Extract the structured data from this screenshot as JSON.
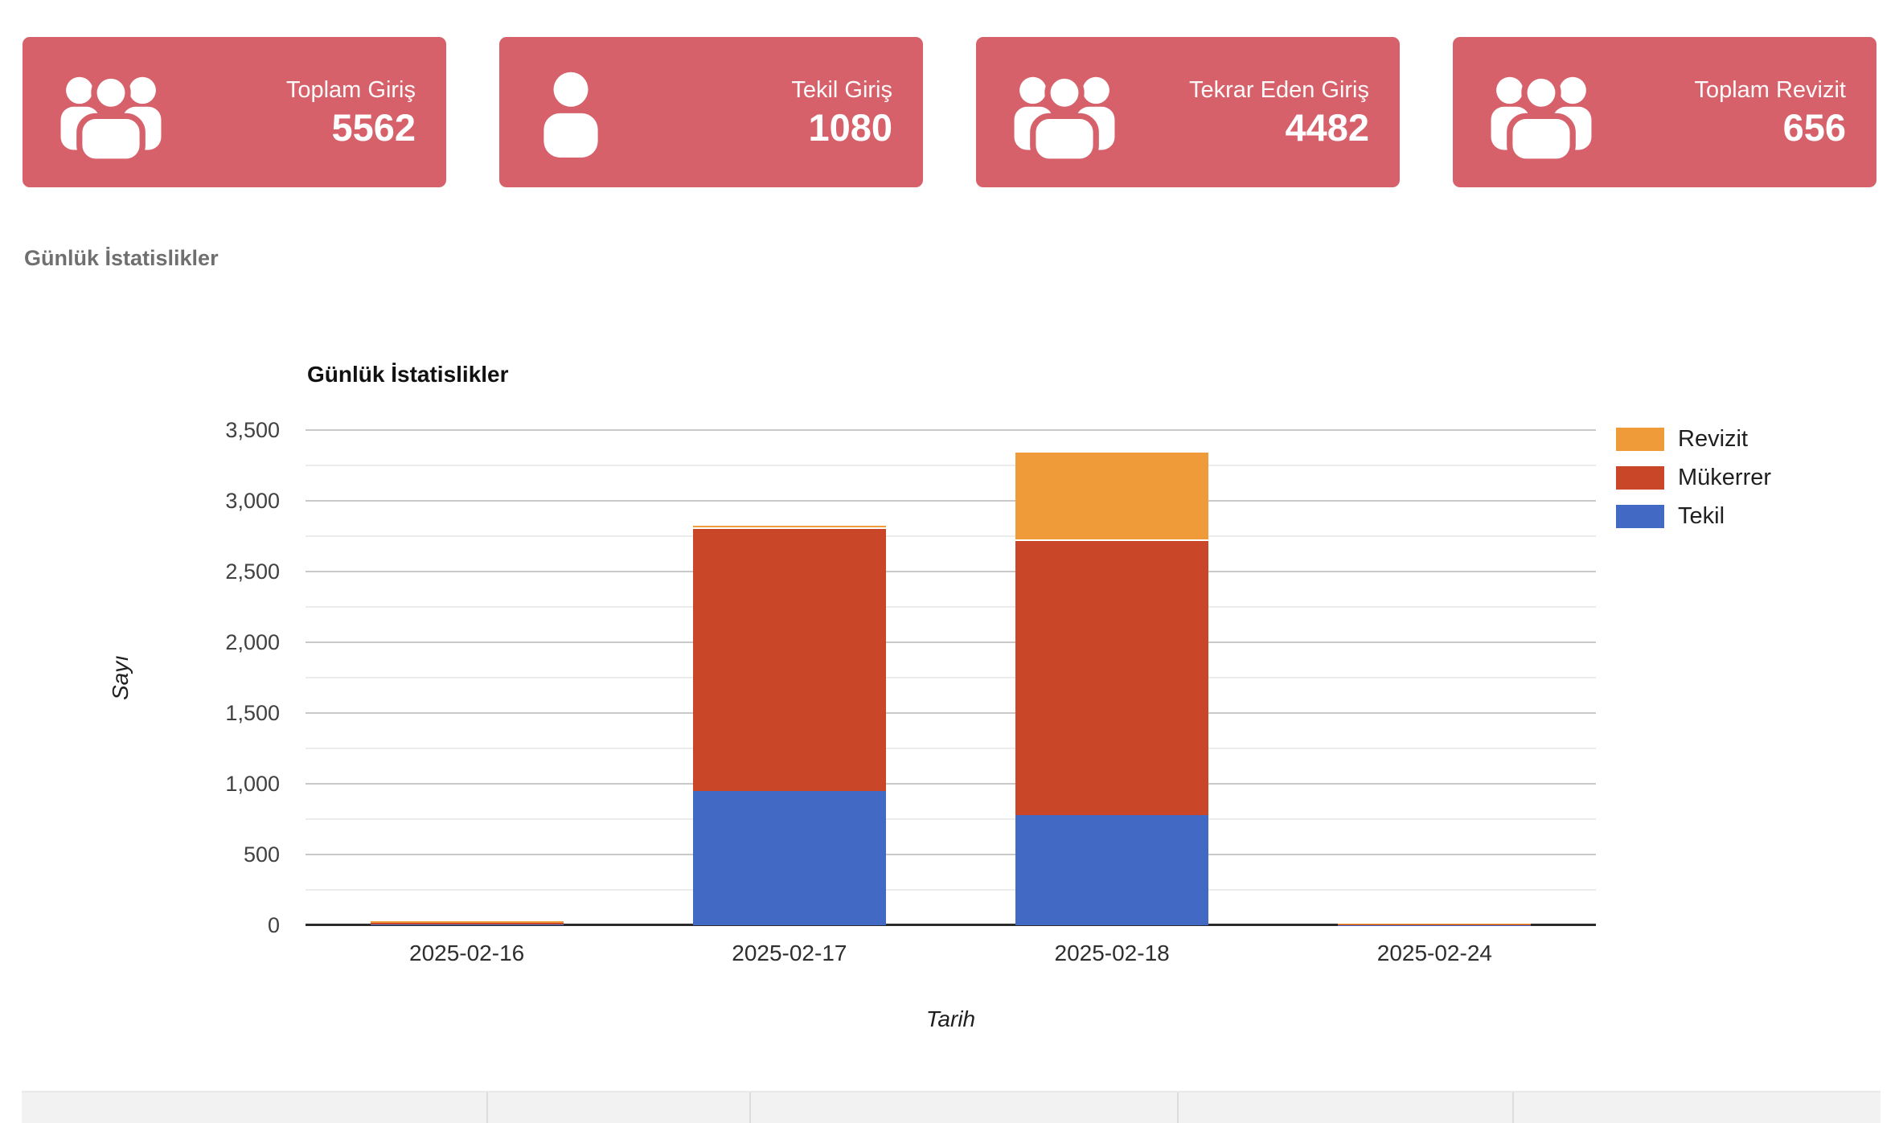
{
  "stat_cards": {
    "color": "#d6616b",
    "items": [
      {
        "label": "Toplam Giriş",
        "value": "5562",
        "icon": "users-icon"
      },
      {
        "label": "Tekil Giriş",
        "value": "1080",
        "icon": "user-icon"
      },
      {
        "label": "Tekrar Eden Giriş",
        "value": "4482",
        "icon": "users-icon"
      },
      {
        "label": "Toplam Revizit",
        "value": "656",
        "icon": "users-icon"
      }
    ]
  },
  "section": {
    "title": "Günlük İstatislikler"
  },
  "chart_data": {
    "type": "bar",
    "stacked": true,
    "title": "Günlük İstatislikler",
    "xlabel": "Tarih",
    "ylabel": "Sayı",
    "categories": [
      "2025-02-16",
      "2025-02-17",
      "2025-02-18",
      "2025-02-24"
    ],
    "series": [
      {
        "name": "Tekil",
        "color": "#4269c4",
        "values": [
          3,
          950,
          780,
          2
        ]
      },
      {
        "name": "Mükerrer",
        "color": "#ca4628",
        "values": [
          13,
          1865,
          1945,
          6
        ]
      },
      {
        "name": "Revizit",
        "color": "#ef9b3a",
        "values": [
          13,
          10,
          630,
          4
        ]
      }
    ],
    "ylim": [
      0,
      3500
    ],
    "ytick_interval": 500,
    "ytick_labels": [
      "0",
      "500",
      "1,000",
      "1,500",
      "2,000",
      "2,500",
      "3,000",
      "3,500"
    ],
    "minor_gridline_interval": 250,
    "grid": true,
    "legend_position": "right",
    "legend_order": [
      "Revizit",
      "Mükerrer",
      "Tekil"
    ]
  },
  "bottom_table": {
    "header_background": "#f2f2f2",
    "columns": [
      "",
      "",
      "",
      "",
      ""
    ]
  }
}
